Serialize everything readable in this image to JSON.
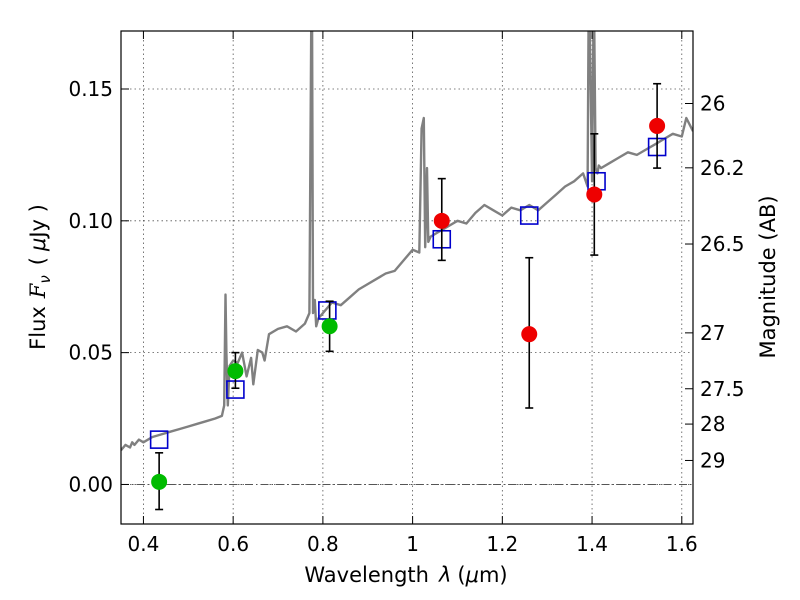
{
  "chart_data": {
    "type": "scatter",
    "title": "",
    "xlabel": "Wavelength",
    "xlabel_symbol": "λ",
    "xlabel_unit_open": "(",
    "xlabel_unit_mu": "μ",
    "xlabel_unit_close": "m)",
    "ylabel": "Flux",
    "ylabel_symbol": "F",
    "ylabel_subscript": "ν",
    "ylabel_unit_open": "(",
    "ylabel_unit_mu": "μ",
    "ylabel_unit_close": "Jy )",
    "y2label": "Magnitude (AB)",
    "xlim": [
      0.35,
      1.625
    ],
    "ylim": [
      -0.015,
      0.172
    ],
    "xticks": [
      {
        "value": 0.4,
        "label": "0.4"
      },
      {
        "value": 0.6,
        "label": "0.6"
      },
      {
        "value": 0.8,
        "label": "0.8"
      },
      {
        "value": 1.0,
        "label": "1"
      },
      {
        "value": 1.2,
        "label": "1.2"
      },
      {
        "value": 1.4,
        "label": "1.4"
      },
      {
        "value": 1.6,
        "label": "1.6"
      }
    ],
    "yticks": [
      {
        "value": 0.0,
        "label": "0.00"
      },
      {
        "value": 0.05,
        "label": "0.05"
      },
      {
        "value": 0.1,
        "label": "0.10"
      },
      {
        "value": 0.15,
        "label": "0.15"
      }
    ],
    "y2ticks": [
      {
        "flux": 0.1445,
        "label": "26"
      },
      {
        "flux": 0.1201,
        "label": "26.2"
      },
      {
        "flux": 0.0912,
        "label": "26.5"
      },
      {
        "flux": 0.0575,
        "label": "27"
      },
      {
        "flux": 0.0363,
        "label": "27.5"
      },
      {
        "flux": 0.0229,
        "label": "28"
      },
      {
        "flux": 0.0091,
        "label": "29"
      }
    ],
    "horizontal_line": {
      "y": 0.0,
      "style": "dash-dot"
    },
    "grid": true,
    "series": [
      {
        "name": "model spectrum",
        "kind": "line",
        "color": "#808080",
        "x": [
          0.35,
          0.36,
          0.37,
          0.375,
          0.38,
          0.39,
          0.4,
          0.42,
          0.44,
          0.46,
          0.48,
          0.5,
          0.52,
          0.54,
          0.56,
          0.575,
          0.58,
          0.583,
          0.585,
          0.588,
          0.592,
          0.6,
          0.61,
          0.62,
          0.63,
          0.64,
          0.645,
          0.655,
          0.665,
          0.67,
          0.68,
          0.7,
          0.72,
          0.74,
          0.76,
          0.77,
          0.774,
          0.776,
          0.778,
          0.782,
          0.785,
          0.79,
          0.8,
          0.82,
          0.84,
          0.86,
          0.88,
          0.9,
          0.92,
          0.94,
          0.96,
          0.98,
          1.0,
          1.015,
          1.02,
          1.025,
          1.028,
          1.032,
          1.035,
          1.04,
          1.06,
          1.08,
          1.1,
          1.12,
          1.14,
          1.16,
          1.18,
          1.2,
          1.22,
          1.24,
          1.26,
          1.28,
          1.3,
          1.32,
          1.34,
          1.36,
          1.38,
          1.39,
          1.392,
          1.395,
          1.4,
          1.403,
          1.405,
          1.408,
          1.412,
          1.415,
          1.42,
          1.44,
          1.46,
          1.48,
          1.5,
          1.52,
          1.54,
          1.56,
          1.58,
          1.6,
          1.61,
          1.625
        ],
        "y": [
          0.013,
          0.015,
          0.014,
          0.016,
          0.015,
          0.017,
          0.016,
          0.018,
          0.019,
          0.02,
          0.021,
          0.022,
          0.023,
          0.024,
          0.025,
          0.026,
          0.03,
          0.072,
          0.05,
          0.03,
          0.045,
          0.047,
          0.046,
          0.05,
          0.041,
          0.048,
          0.038,
          0.051,
          0.05,
          0.047,
          0.057,
          0.059,
          0.06,
          0.058,
          0.061,
          0.065,
          0.172,
          0.172,
          0.065,
          0.07,
          0.06,
          0.063,
          0.065,
          0.069,
          0.068,
          0.071,
          0.074,
          0.076,
          0.078,
          0.08,
          0.081,
          0.085,
          0.089,
          0.088,
          0.135,
          0.139,
          0.09,
          0.12,
          0.092,
          0.094,
          0.096,
          0.098,
          0.1,
          0.099,
          0.103,
          0.106,
          0.104,
          0.102,
          0.105,
          0.104,
          0.106,
          0.104,
          0.107,
          0.11,
          0.113,
          0.115,
          0.118,
          0.113,
          0.172,
          0.172,
          0.115,
          0.172,
          0.172,
          0.12,
          0.118,
          0.121,
          0.12,
          0.122,
          0.124,
          0.126,
          0.125,
          0.127,
          0.129,
          0.131,
          0.133,
          0.132,
          0.139,
          0.134
        ]
      },
      {
        "name": "model photometry",
        "kind": "open-square",
        "color": "#0000cc",
        "x": [
          0.435,
          0.605,
          0.81,
          1.065,
          1.26,
          1.41,
          1.545
        ],
        "y": [
          0.017,
          0.036,
          0.066,
          0.093,
          0.102,
          0.115,
          0.128
        ]
      },
      {
        "name": "detections (green)",
        "kind": "filled-circle",
        "color": "#00bb00",
        "x": [
          0.435,
          0.605,
          0.815
        ],
        "y": [
          0.001,
          0.043,
          0.06
        ],
        "yerr_low": [
          0.0105,
          0.0065,
          0.0095
        ],
        "yerr_high": [
          0.011,
          0.007,
          0.0095
        ]
      },
      {
        "name": "detections (red)",
        "kind": "filled-circle",
        "color": "#ee0000",
        "x": [
          1.065,
          1.26,
          1.405,
          1.545
        ],
        "y": [
          0.1,
          0.057,
          0.11,
          0.136
        ],
        "yerr_low": [
          0.015,
          0.028,
          0.023,
          0.016
        ],
        "yerr_high": [
          0.016,
          0.029,
          0.023,
          0.016
        ]
      }
    ]
  }
}
